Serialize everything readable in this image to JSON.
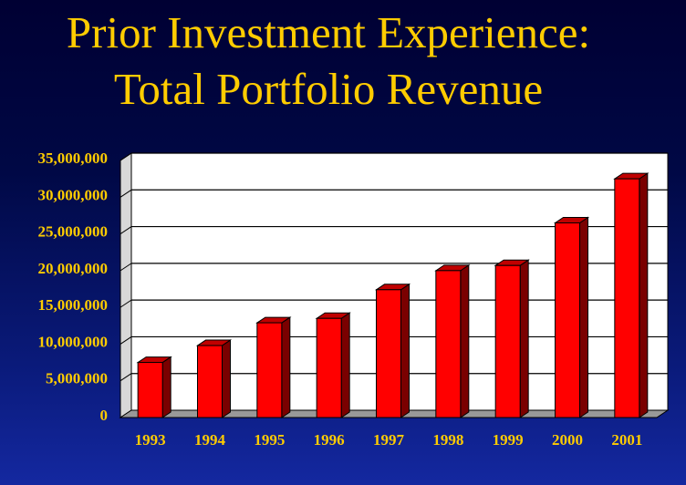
{
  "slide": {
    "title_line1": "Prior Investment Experience:",
    "title_line2": "Total Portfolio Revenue"
  },
  "colors": {
    "title": "#ffcc00",
    "bar_front": "#ff0000",
    "bar_side": "#7a0000",
    "bar_top": "#c00000",
    "plot_background": "#ffffff",
    "floor": "#999999",
    "background_top": "#000033",
    "background_bottom": "#1428a0"
  },
  "chart_data": {
    "type": "bar",
    "categories": [
      "1993",
      "1994",
      "1995",
      "1996",
      "1997",
      "1998",
      "1999",
      "2000",
      "2001"
    ],
    "values": [
      7500000,
      9800000,
      12900000,
      13500000,
      17400000,
      20000000,
      20700000,
      26500000,
      32500000
    ],
    "ylim": [
      0,
      35000000
    ],
    "y_ticks": [
      0,
      5000000,
      10000000,
      15000000,
      20000000,
      25000000,
      30000000,
      35000000
    ],
    "y_tick_labels": [
      "0",
      "5,000,000",
      "10,000,000",
      "15,000,000",
      "20,000,000",
      "25,000,000",
      "30,000,000",
      "35,000,000"
    ],
    "title": "",
    "xlabel": "",
    "ylabel": "",
    "grid": true,
    "style": "3d"
  }
}
